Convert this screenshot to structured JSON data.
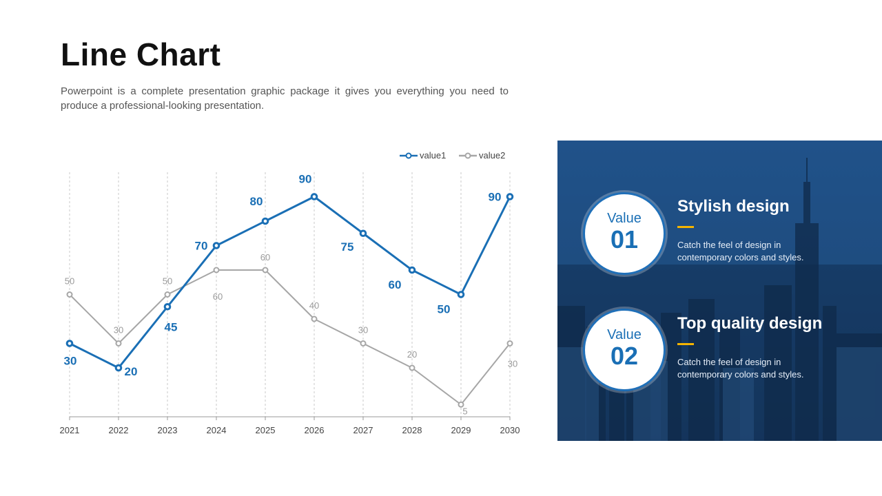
{
  "page": {
    "title": "Line Chart",
    "subtitle": "Powerpoint is a complete presentation graphic package it gives you everything you need to produce a professional-looking  presentation."
  },
  "chart_data": {
    "type": "line",
    "title": "",
    "xlabel": "",
    "ylabel": "",
    "categories": [
      "2021",
      "2022",
      "2023",
      "2024",
      "2025",
      "2026",
      "2027",
      "2028",
      "2029",
      "2030"
    ],
    "series": [
      {
        "name": "value1",
        "color": "#1a6fb5",
        "values": [
          30,
          20,
          45,
          70,
          80,
          90,
          75,
          60,
          50,
          90
        ],
        "labels": [
          "30",
          "20",
          "45",
          "70",
          "80",
          "90",
          "75",
          "60",
          "50",
          "90"
        ]
      },
      {
        "name": "value2",
        "color": "#a6a6a6",
        "values": [
          50,
          30,
          50,
          60,
          60,
          40,
          30,
          20,
          5,
          30
        ],
        "labels": [
          "50",
          "30",
          "50",
          "60",
          "60",
          "40",
          "30",
          "20",
          "5",
          "30"
        ]
      }
    ],
    "ylim": [
      0,
      100
    ],
    "grid": "vertical-dashed",
    "legend": "top-right"
  },
  "features": [
    {
      "value_label": "Value",
      "value_number": "01",
      "title": "Stylish design",
      "description": "Catch the feel of design in contemporary colors and styles."
    },
    {
      "value_label": "Value",
      "value_number": "02",
      "title": "Top quality design",
      "description": "Catch the feel of design in contemporary colors and styles."
    }
  ],
  "colors": {
    "accent": "#1a6fb5",
    "secondary": "#a6a6a6",
    "highlight": "#f5b400",
    "panel": "#1b4677"
  }
}
